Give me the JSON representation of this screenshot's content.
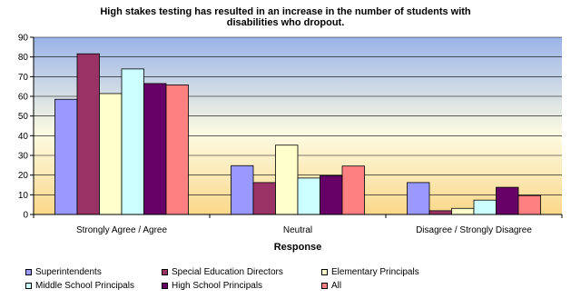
{
  "chart_data": {
    "type": "bar",
    "title_lines": [
      "High stakes testing has resulted in an increase in the number of students with",
      "disabilities who dropout."
    ],
    "xlabel": "Response",
    "ylabel": "",
    "ylim": [
      0,
      90
    ],
    "yticks": [
      0,
      10,
      20,
      30,
      40,
      50,
      60,
      70,
      80,
      90
    ],
    "categories": [
      "Strongly Agree / Agree",
      "Neutral",
      "Disagree / Strongly Disagree"
    ],
    "series": [
      {
        "name": "Superintendents",
        "color": "#9999ff",
        "values": [
          58.5,
          24.8,
          16.2
        ]
      },
      {
        "name": "Special Education Directors",
        "color": "#993366",
        "values": [
          81.6,
          16.2,
          1.9
        ]
      },
      {
        "name": "Elementary Principals",
        "color": "#ffffcc",
        "values": [
          61.4,
          35.2,
          3.1
        ]
      },
      {
        "name": "Middle School Principals",
        "color": "#ccffff",
        "values": [
          73.9,
          18.5,
          7.3
        ]
      },
      {
        "name": "High School Principals",
        "color": "#660066",
        "values": [
          66.5,
          19.7,
          13.8
        ]
      },
      {
        "name": "All",
        "color": "#ff8080",
        "values": [
          65.8,
          24.6,
          9.6
        ]
      }
    ],
    "grid": true,
    "legend_position": "bottom",
    "background_gradient": [
      "#9ab4e8",
      "#fdfbe2",
      "#fad88a"
    ]
  }
}
